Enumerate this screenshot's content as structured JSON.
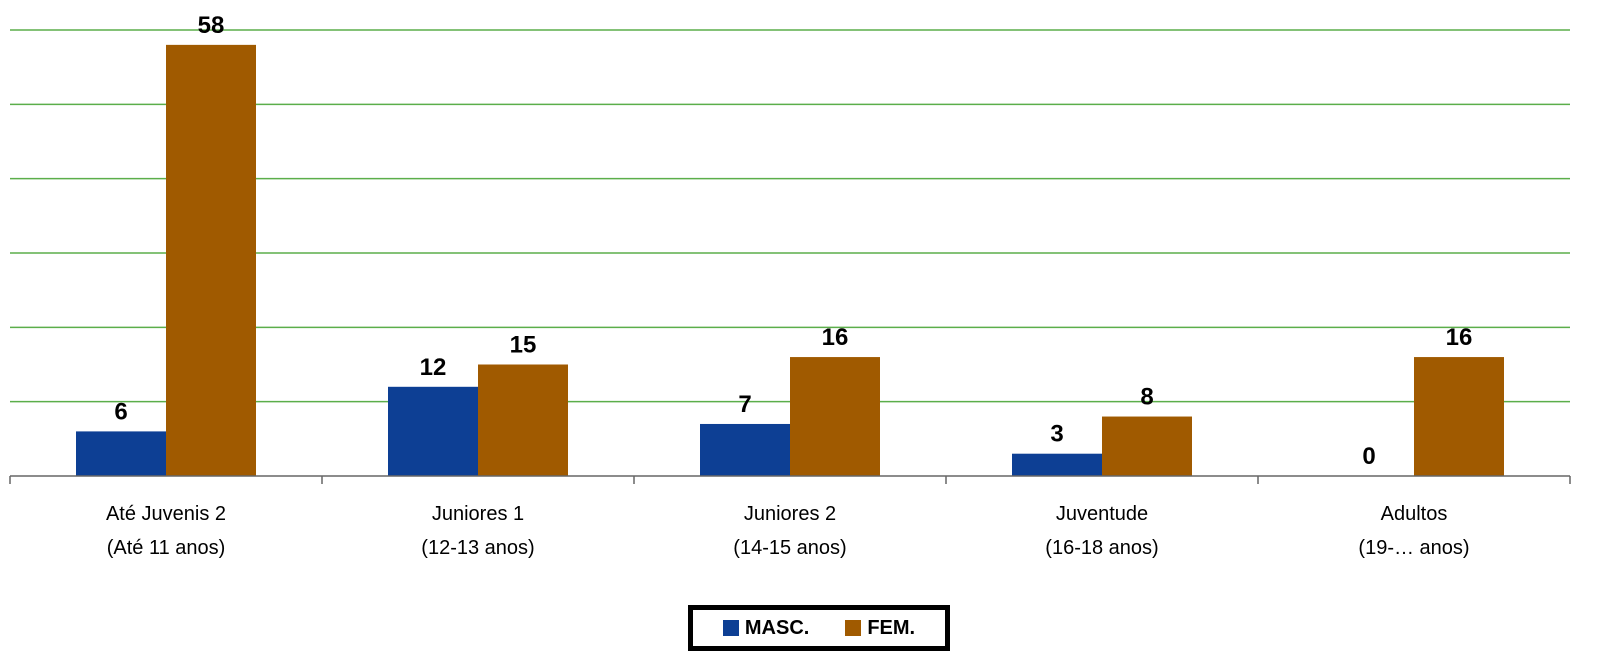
{
  "chart_data": {
    "type": "bar",
    "categories": [
      [
        "Até Juvenis 2",
        "(Até 11 anos)"
      ],
      [
        "Juniores 1",
        "(12-13 anos)"
      ],
      [
        "Juniores 2",
        "(14-15 anos)"
      ],
      [
        "Juventude",
        "(16-18 anos)"
      ],
      [
        "Adultos",
        "(19-… anos)"
      ]
    ],
    "series": [
      {
        "name": "MASC.",
        "values": [
          6,
          12,
          7,
          3,
          0
        ],
        "color": "#0D3F94"
      },
      {
        "name": "FEM.",
        "values": [
          58,
          15,
          16,
          8,
          16
        ],
        "color": "#A05A00"
      }
    ],
    "ylim": [
      0,
      60
    ],
    "y_gridlines": [
      0,
      10,
      20,
      30,
      40,
      50,
      60
    ],
    "grid_color": "#5BAE4A",
    "grid": true,
    "legend_position": "bottom-center",
    "data_labels": true
  }
}
